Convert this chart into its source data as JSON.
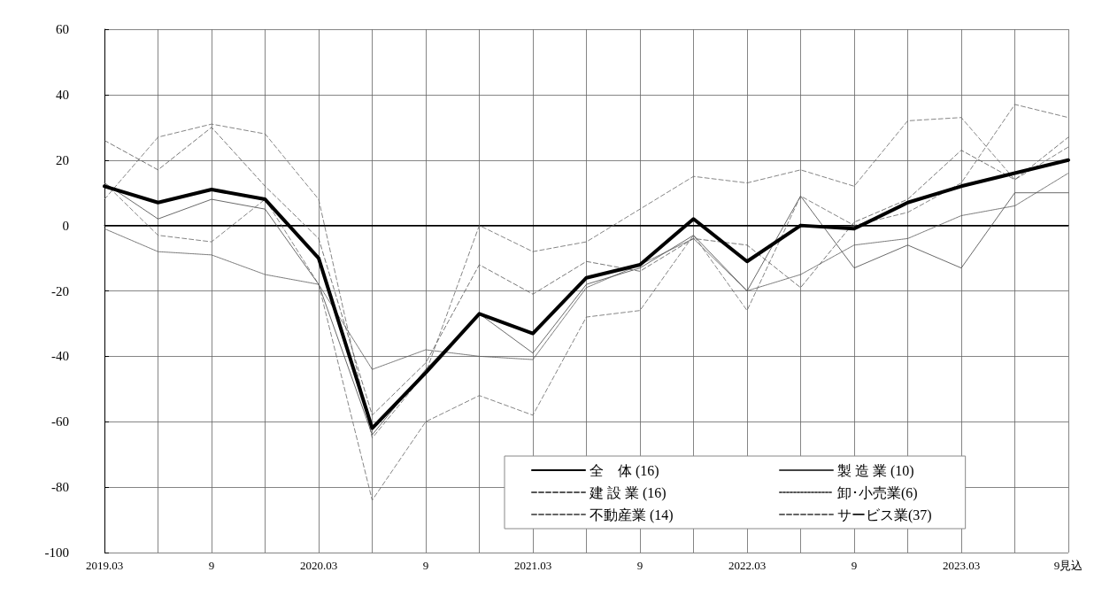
{
  "chart_data": {
    "type": "line",
    "categories": [
      "2019.03",
      null,
      "9",
      null,
      "2020.03",
      null,
      "9",
      null,
      "2021.03",
      null,
      "9",
      null,
      "2022.03",
      null,
      "9",
      null,
      "2023.03",
      null,
      "9見込"
    ],
    "series": [
      {
        "name": "全　体 (16)",
        "color": "#000000",
        "line_style": "solid",
        "values": [
          12,
          7,
          11,
          8,
          -10,
          -62,
          -45,
          -27,
          -33,
          -16,
          -12,
          2,
          -11,
          0,
          -1,
          7,
          12,
          16,
          20
        ]
      },
      {
        "name": "製 造 業 (10)",
        "color": "#444444",
        "line_style": "solid",
        "values": [
          13,
          2,
          8,
          5,
          -18,
          -64,
          -44,
          -27,
          -39,
          -18,
          -13,
          -3,
          -20,
          9,
          -13,
          -6,
          -13,
          10,
          10
        ]
      },
      {
        "name": "建 設 業 (16)",
        "color": "#555555",
        "line_style": "dashed",
        "values": [
          26,
          17,
          30,
          12,
          -4,
          -58,
          -42,
          -12,
          -21,
          -11,
          -14,
          -4,
          -6,
          -19,
          1,
          8,
          23,
          14,
          27
        ]
      },
      {
        "name": "卸･小売業(6)",
        "color": "#555555",
        "line_style": "dotted",
        "values": [
          -1,
          -8,
          -9,
          -15,
          -18,
          -44,
          -38,
          -40,
          -41,
          -19,
          -12,
          -4,
          -20,
          -15,
          -6,
          -4,
          3,
          6,
          16
        ]
      },
      {
        "name": "不動産業 (14)",
        "color": "#666666",
        "line_style": "dashed",
        "values": [
          8,
          27,
          31,
          28,
          8,
          -65,
          -45,
          0,
          -8,
          -5,
          5,
          15,
          13,
          17,
          12,
          32,
          33,
          14,
          24
        ]
      },
      {
        "name": "サービス業(37)",
        "color": "#666666",
        "line_style": "dashed",
        "values": [
          13,
          -3,
          -5,
          8,
          -18,
          -84,
          -60,
          -52,
          -58,
          -28,
          -26,
          -3,
          -26,
          9,
          0,
          4,
          13,
          37,
          33
        ]
      }
    ],
    "ylim": [
      -100,
      60
    ],
    "yticks": [
      -100,
      -80,
      -60,
      -40,
      -20,
      0,
      20,
      40,
      60
    ],
    "ref_lines": [
      {
        "axis": "y",
        "value": 0,
        "color": "#000000"
      }
    ],
    "grid": true,
    "legend": "bottom right",
    "marker": "none"
  }
}
